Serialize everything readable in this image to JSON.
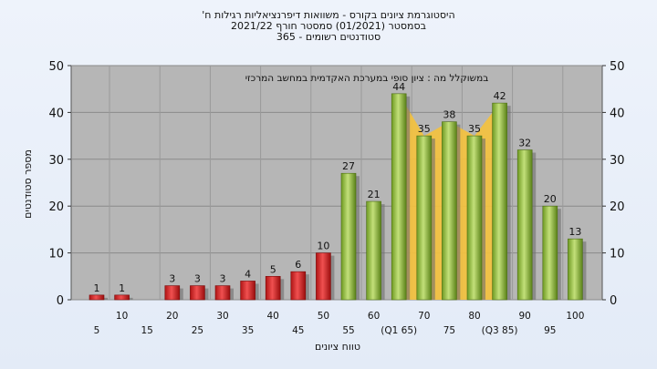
{
  "chart_data": {
    "type": "bar",
    "title_lines": [
      "היסטוגרמת ציונים בקורס - משוואות דיפרנציאליות רגילות ח'",
      "בסמסטר   (01/2021)  סמסטר חורף  2021/22",
      "סטודנטים רשומים - 365"
    ],
    "annotation": "במשוקלל מה : ציון סופי במערכת האקדמית במחשב המרכזי",
    "xlabel": "טווח ציונים",
    "ylabel": "מספר סטודנטים",
    "ylim": [
      0,
      50
    ],
    "yticks": [
      0,
      10,
      20,
      30,
      40,
      50
    ],
    "xtick_labels_upper": [
      "10",
      "20",
      "30",
      "40",
      "50",
      "60",
      "70",
      "80",
      "90",
      "100"
    ],
    "xtick_labels_lower": [
      "5",
      "15",
      "25",
      "35",
      "45",
      "55",
      "(Q1 65)",
      "75",
      "(Q3 85)",
      "95"
    ],
    "categories": [
      "5",
      "10",
      "15",
      "20",
      "25",
      "30",
      "35",
      "40",
      "45",
      "50",
      "55",
      "60",
      "65",
      "70",
      "75",
      "80",
      "85",
      "90",
      "95",
      "100"
    ],
    "values": [
      1,
      1,
      0,
      3,
      3,
      3,
      4,
      5,
      6,
      10,
      27,
      21,
      44,
      35,
      38,
      35,
      42,
      32,
      20,
      13
    ],
    "value_labels": [
      "1",
      "1",
      "",
      "3",
      "3",
      "3",
      "4",
      "5",
      "6",
      "10",
      "27",
      "21",
      "44",
      "35",
      "38",
      "35",
      "42",
      "32",
      "20",
      "13"
    ],
    "colors": {
      "fail": "#d42a2a",
      "pass": "#8fbf3a",
      "iqr_band": "#f5c23c",
      "plot_bg": "#b6b6b6"
    },
    "iqr_range": [
      "65",
      "85"
    ],
    "grid": true
  }
}
